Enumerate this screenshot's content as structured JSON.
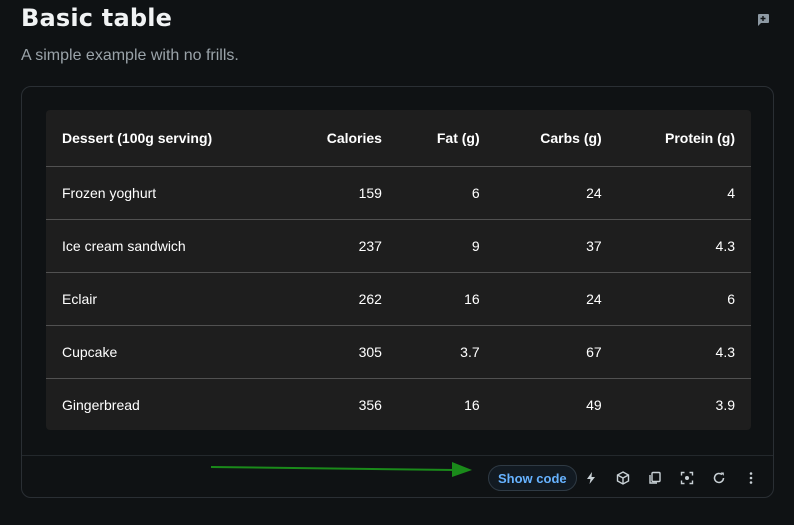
{
  "header": {
    "title": "Basic table",
    "subtitle": "A simple example with no frills."
  },
  "table": {
    "columns": [
      "Dessert (100g serving)",
      "Calories",
      "Fat (g)",
      "Carbs (g)",
      "Protein (g)"
    ],
    "rows": [
      [
        "Frozen yoghurt",
        "159",
        "6",
        "24",
        "4"
      ],
      [
        "Ice cream sandwich",
        "237",
        "9",
        "37",
        "4.3"
      ],
      [
        "Eclair",
        "262",
        "16",
        "24",
        "6"
      ],
      [
        "Cupcake",
        "305",
        "3.7",
        "67",
        "4.3"
      ],
      [
        "Gingerbread",
        "356",
        "16",
        "49",
        "3.9"
      ]
    ]
  },
  "toolbar": {
    "show_code_label": "Show code",
    "icons": [
      "bolt-icon",
      "cube-icon",
      "copy-icon",
      "screenshot-icon",
      "reset-icon",
      "more-icon"
    ]
  },
  "colors": {
    "accent": "#66b2ff",
    "annotation_arrow": "#1a8a1a"
  }
}
